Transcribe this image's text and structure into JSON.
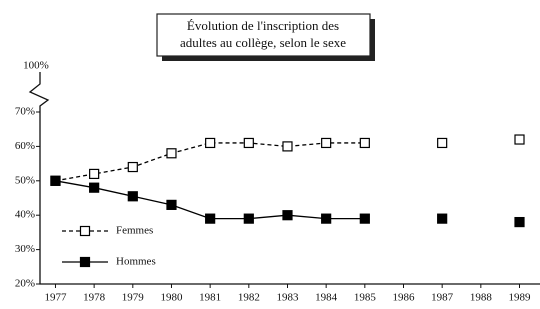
{
  "chart_data": {
    "type": "line",
    "title": [
      "Évolution de l'inscription des",
      "adultes au collège, selon le sexe"
    ],
    "x": [
      1977,
      1978,
      1979,
      1980,
      1981,
      1982,
      1983,
      1984,
      1985,
      1986,
      1987,
      1988,
      1989
    ],
    "series": [
      {
        "name": "Femmes",
        "color": "#000000",
        "dashed": true,
        "filled": false,
        "values": [
          50,
          52,
          54,
          58,
          61,
          61,
          60,
          61,
          61,
          null,
          61,
          null,
          62
        ]
      },
      {
        "name": "Hommes",
        "color": "#000000",
        "dashed": false,
        "filled": true,
        "values": [
          50,
          48,
          45.5,
          43,
          39,
          39,
          40,
          39,
          39,
          null,
          39,
          null,
          38
        ]
      }
    ],
    "xlim": [
      1976.6,
      1989.53
    ],
    "xticks": [
      1977,
      1978,
      1979,
      1980,
      1981,
      1982,
      1983,
      1984,
      1985,
      1986,
      1987,
      1988,
      1989
    ],
    "ylim": [
      20,
      70
    ],
    "yticks": [
      {
        "value": 20,
        "label": "20%"
      },
      {
        "value": 30,
        "label": "30%"
      },
      {
        "value": 40,
        "label": "40%"
      },
      {
        "value": 50,
        "label": "50%"
      },
      {
        "value": 60,
        "label": "60%"
      },
      {
        "value": 70,
        "label": "70%"
      }
    ],
    "axis_break_label": "100%",
    "legend": "lower left"
  }
}
